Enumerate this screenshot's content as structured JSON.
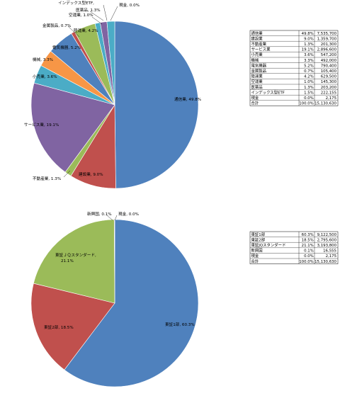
{
  "chart_data": [
    {
      "type": "pie",
      "title": "",
      "series": [
        {
          "values": [
            49.8,
            9.0,
            1.3,
            19.1,
            3.6,
            3.3,
            5.2,
            0.7,
            4.2,
            1.0,
            1.3,
            1.5,
            0.0
          ]
        }
      ],
      "categories": [
        "通信業",
        "建設業",
        "不動産業",
        "サービス業",
        "小売業",
        "機械",
        "電気機器",
        "金属製品",
        "陸運業",
        "空運業",
        "医薬品",
        "インデックス型ETF",
        "現金"
      ],
      "labels": [
        "通信業, 49.8%",
        "建設業, 9.0%",
        "不動産業, 1.3%",
        "サービス業, 19.1%",
        "小売業, 3.6%",
        "機械, 3.3%",
        "電気機器, 5.2%",
        "金属製品, 0.7%",
        "陸運業, 4.2%",
        "空運業, 1.0%",
        "医薬品, 1.3%",
        "インデックス型ETF,",
        "現金, 0.0%"
      ],
      "colors": [
        "#4F81BD",
        "#C0504D",
        "#9BBB59",
        "#8064A2",
        "#4BACC6",
        "#F79646",
        "#4F81BD",
        "#C0504D",
        "#9BBB59",
        "#4BACC6",
        "#8064A2",
        "#4BACC6",
        "#F79646"
      ],
      "table": {
        "rows": [
          [
            "通信業",
            "49.8%",
            "7,535,700"
          ],
          [
            "建設業",
            "9.0%",
            "1,359,700"
          ],
          [
            "不動産業",
            "1.3%",
            "201,300"
          ],
          [
            "サービス業",
            "19.1%",
            "2,896,600"
          ],
          [
            "小売業",
            "3.6%",
            "547,200"
          ],
          [
            "機械",
            "3.3%",
            "492,000"
          ],
          [
            "電気機器",
            "5.2%",
            "790,400"
          ],
          [
            "金属製品",
            "0.7%",
            "105,400"
          ],
          [
            "陸運業",
            "4.2%",
            "629,500"
          ],
          [
            "空運業",
            "1.0%",
            "145,300"
          ],
          [
            "医薬品",
            "1.3%",
            "203,200"
          ],
          [
            "インデックス型ETF",
            "1.5%",
            "222,155"
          ],
          [
            "現金",
            "0.0%",
            "2,175"
          ]
        ],
        "total": [
          "合計",
          "100.0%",
          "15,130,630"
        ]
      }
    },
    {
      "type": "pie",
      "title": "",
      "series": [
        {
          "values": [
            60.3,
            18.5,
            21.1,
            0.1,
            0.0
          ]
        }
      ],
      "categories": [
        "東証1部",
        "東証2部",
        "東証ＪＱスタンダード",
        "新興国",
        "現金"
      ],
      "labels": [
        "東証1部, 60.3%",
        "東証2部, 18.5%",
        "東証ＪＱスタンダード, 21.1%",
        "新興国, 0.1%",
        "現金, 0.0%"
      ],
      "colors": [
        "#4F81BD",
        "#C0504D",
        "#9BBB59",
        "#8064A2",
        "#4BACC6"
      ],
      "table": {
        "rows": [
          [
            "東証1部",
            "60.3%",
            "9,122,500"
          ],
          [
            "東証2部",
            "18.5%",
            "2,795,600"
          ],
          [
            "東証JQスタンダード",
            "21.1%",
            "3,193,800"
          ],
          [
            "新興国",
            "0.1%",
            "16,555"
          ],
          [
            "現金",
            "0.0%",
            "2,175"
          ]
        ],
        "total": [
          "合計",
          "100.0%",
          "15,130,630"
        ]
      }
    }
  ]
}
